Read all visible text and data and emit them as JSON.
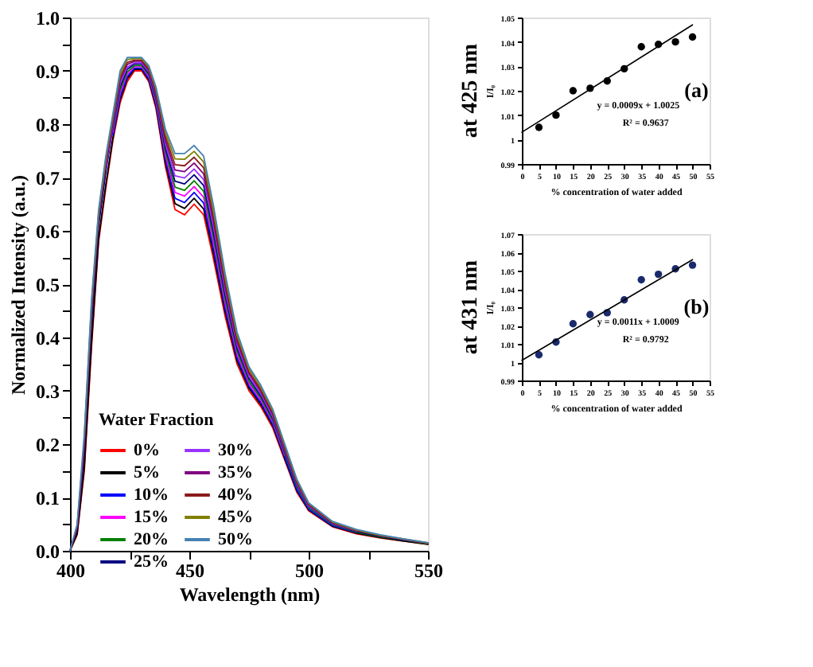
{
  "chart_data": [
    {
      "type": "line",
      "xlabel": "Wavelength (nm)",
      "ylabel": "Normalized Intensity (a.u.)",
      "legend_title": "Water Fraction",
      "legend": "bottom left",
      "grid": false,
      "x": [
        400,
        403,
        406,
        409,
        412,
        415,
        418,
        421,
        424,
        427,
        430,
        433,
        436,
        440,
        444,
        448,
        452,
        456,
        460,
        465,
        470,
        475,
        480,
        485,
        490,
        495,
        500,
        510,
        520,
        530,
        540,
        550
      ],
      "xlim": [
        400,
        550
      ],
      "xticks": [
        400,
        {
          "value": 425,
          "label": null
        },
        450,
        {
          "value": 475,
          "label": null
        },
        500,
        {
          "value": 525,
          "label": null
        },
        550
      ],
      "ylim": [
        0,
        1
      ],
      "yticks": [
        {
          "value": 0,
          "label": "0.0"
        },
        {
          "value": 0.05,
          "label": null
        },
        0.1,
        {
          "value": 0.15,
          "label": null
        },
        0.2,
        {
          "value": 0.25,
          "label": null
        },
        0.3,
        {
          "value": 0.35,
          "label": null
        },
        0.4,
        {
          "value": 0.45,
          "label": null
        },
        0.5,
        {
          "value": 0.55,
          "label": null
        },
        0.6,
        {
          "value": 0.65,
          "label": null
        },
        0.7,
        {
          "value": 0.75,
          "label": null
        },
        0.8,
        {
          "value": 0.85,
          "label": null
        },
        0.9,
        {
          "value": 0.95,
          "label": null
        },
        {
          "value": 1,
          "label": "1.0"
        }
      ],
      "series": [
        {
          "name": "0%",
          "color": "#ff0000",
          "values": [
            0,
            0.03,
            0.15,
            0.38,
            0.58,
            0.68,
            0.77,
            0.84,
            0.88,
            0.9,
            0.9,
            0.88,
            0.83,
            0.72,
            0.64,
            0.63,
            0.65,
            0.63,
            0.55,
            0.44,
            0.35,
            0.3,
            0.27,
            0.23,
            0.17,
            0.11,
            0.075,
            0.045,
            0.032,
            0.024,
            0.018,
            0.012
          ]
        },
        {
          "name": "5%",
          "color": "#000000",
          "values": [
            0,
            0.032,
            0.157,
            0.389,
            0.586,
            0.686,
            0.775,
            0.846,
            0.885,
            0.903,
            0.903,
            0.883,
            0.834,
            0.727,
            0.651,
            0.642,
            0.661,
            0.641,
            0.56,
            0.448,
            0.356,
            0.305,
            0.274,
            0.234,
            0.173,
            0.113,
            0.077,
            0.046,
            0.033,
            0.025,
            0.018,
            0.012
          ]
        },
        {
          "name": "10%",
          "color": "#0000ff",
          "values": [
            null,
            null,
            null,
            null,
            null,
            null,
            0.78,
            0.852,
            0.889,
            0.905,
            0.905,
            0.886,
            0.838,
            0.734,
            0.661,
            0.653,
            0.672,
            0.652,
            0.57,
            0.456,
            0.362,
            0.309,
            0.278,
            0.237,
            0.176,
            0.115,
            0.078,
            0.047,
            0.034,
            null,
            null,
            null
          ]
        },
        {
          "name": "15%",
          "color": "#ff00ff",
          "values": [
            null,
            null,
            null,
            null,
            null,
            null,
            0.785,
            0.858,
            0.894,
            0.908,
            0.908,
            0.889,
            0.842,
            0.741,
            0.672,
            0.665,
            0.683,
            0.663,
            0.58,
            0.464,
            0.368,
            0.314,
            0.282,
            0.241,
            0.179,
            null,
            null,
            null,
            null,
            null,
            null,
            null
          ]
        },
        {
          "name": "20%",
          "color": "#008000",
          "values": [
            null,
            null,
            null,
            null,
            null,
            null,
            0.79,
            0.864,
            0.898,
            0.91,
            0.91,
            0.892,
            0.846,
            0.748,
            0.682,
            0.676,
            0.694,
            0.674,
            0.59,
            0.472,
            0.374,
            0.318,
            0.286,
            0.244,
            0.182,
            0.12,
            0.081,
            0.049,
            0.035,
            0.026,
            0.02,
            0.013
          ]
        },
        {
          "name": "25%",
          "color": "#000080",
          "values": [
            0,
            0.04,
            0.185,
            0.425,
            0.61,
            0.71,
            0.795,
            0.87,
            0.903,
            0.913,
            0.913,
            0.895,
            0.85,
            0.755,
            0.693,
            0.688,
            0.705,
            0.685,
            0.6,
            0.48,
            0.38,
            0.323,
            0.29,
            0.248,
            0.185,
            0.123,
            0.083,
            0.05,
            0.036,
            0.027,
            0.02,
            0.014
          ]
        },
        {
          "name": "30%",
          "color": "#9933ff",
          "values": [
            null,
            null,
            null,
            null,
            null,
            0.716,
            0.8,
            0.876,
            0.907,
            0.915,
            0.915,
            0.898,
            0.854,
            0.762,
            0.703,
            0.699,
            0.716,
            0.696,
            0.61,
            0.488,
            0.386,
            0.327,
            0.294,
            0.251,
            0.188,
            0.125,
            0.084,
            0.051,
            0.037,
            null,
            null,
            null
          ]
        },
        {
          "name": "35%",
          "color": "#800080",
          "values": [
            0,
            0.044,
            0.199,
            0.443,
            0.622,
            0.722,
            0.805,
            0.882,
            0.912,
            0.918,
            0.918,
            0.901,
            0.858,
            0.769,
            0.714,
            0.711,
            0.727,
            0.707,
            0.62,
            0.496,
            0.392,
            0.332,
            0.298,
            0.255,
            0.191,
            0.128,
            0.086,
            0.052,
            0.038,
            0.028,
            0.021,
            0.014
          ]
        },
        {
          "name": "40%",
          "color": "#8b1a1a",
          "values": [
            0,
            0.046,
            0.206,
            0.452,
            0.628,
            0.728,
            0.81,
            0.888,
            0.916,
            0.92,
            0.92,
            0.904,
            0.862,
            0.776,
            0.724,
            0.722,
            0.738,
            0.718,
            0.63,
            0.504,
            0.398,
            0.336,
            0.302,
            0.258,
            0.194,
            0.13,
            0.087,
            0.053,
            0.038,
            0.029,
            0.021,
            0.014
          ]
        },
        {
          "name": "45%",
          "color": "#808000",
          "values": [
            null,
            null,
            0.213,
            0.461,
            0.634,
            0.734,
            0.815,
            0.894,
            0.921,
            0.923,
            0.923,
            0.907,
            0.866,
            0.783,
            0.735,
            0.734,
            0.749,
            0.729,
            0.64,
            0.512,
            0.404,
            0.341,
            0.306,
            0.262,
            0.197,
            0.133,
            0.089,
            0.054,
            0.039,
            0.029,
            0.022,
            0.015
          ]
        },
        {
          "name": "50%",
          "color": "#4682b4",
          "values": [
            0,
            0.05,
            0.22,
            0.47,
            0.64,
            0.74,
            0.82,
            0.9,
            0.925,
            0.925,
            0.925,
            0.91,
            0.87,
            0.79,
            0.745,
            0.745,
            0.76,
            0.74,
            0.65,
            0.52,
            0.41,
            0.345,
            0.31,
            0.265,
            0.2,
            0.135,
            0.09,
            0.055,
            0.04,
            0.03,
            0.022,
            0.015
          ]
        }
      ]
    },
    {
      "type": "scatter",
      "title": "at 425 nm",
      "xlabel": "% concentration of water added",
      "ylabel": "I/I₀",
      "grid": false,
      "annotations": [
        "y = 0.0009x + 1.0025",
        "R² = 0.9637",
        "(a)"
      ],
      "xlim": [
        0,
        55
      ],
      "xticks": [
        0,
        5,
        10,
        15,
        20,
        25,
        30,
        35,
        40,
        45,
        50,
        55
      ],
      "ylim": [
        0.99,
        1.05
      ],
      "yticks": [
        0.99,
        1,
        1.01,
        1.02,
        1.03,
        1.04,
        1.05
      ],
      "series": [
        {
          "color": "#000000",
          "marker": "circle",
          "x": [
            5,
            10,
            15,
            20,
            25,
            30,
            35,
            40,
            45,
            50
          ],
          "values": [
            1.005,
            1.01,
            1.02,
            1.021,
            1.024,
            1.029,
            1.038,
            1.039,
            1.04,
            1.042
          ]
        },
        {
          "type": "line",
          "marker": "none",
          "color": "#000000",
          "x": [
            0,
            50
          ],
          "values": [
            1.003,
            1.047
          ]
        }
      ]
    },
    {
      "type": "scatter",
      "title": "at 431 nm",
      "xlabel": "% concentration of water added",
      "ylabel": "I/I₀",
      "grid": false,
      "annotations": [
        "y = 0.0011x + 1.0009",
        "R² = 0.9792",
        "(b)"
      ],
      "xlim": [
        0,
        55
      ],
      "xticks": [
        0,
        5,
        10,
        15,
        20,
        25,
        30,
        35,
        40,
        45,
        50,
        55
      ],
      "ylim": [
        0.99,
        1.07
      ],
      "yticks": [
        0.99,
        1,
        1.01,
        1.02,
        1.03,
        1.04,
        1.05,
        1.06,
        1.07
      ],
      "series": [
        {
          "color": "#1a2a6c",
          "marker": "circle",
          "x": [
            5,
            10,
            15,
            20,
            25,
            30,
            35,
            40,
            45,
            50
          ],
          "values": [
            1.004,
            1.011,
            1.021,
            1.026,
            1.027,
            1.034,
            1.045,
            1.048,
            1.051,
            1.053
          ]
        },
        {
          "type": "line",
          "marker": "none",
          "color": "#000000",
          "x": [
            0,
            50
          ],
          "values": [
            1.001,
            1.056
          ]
        }
      ]
    }
  ]
}
